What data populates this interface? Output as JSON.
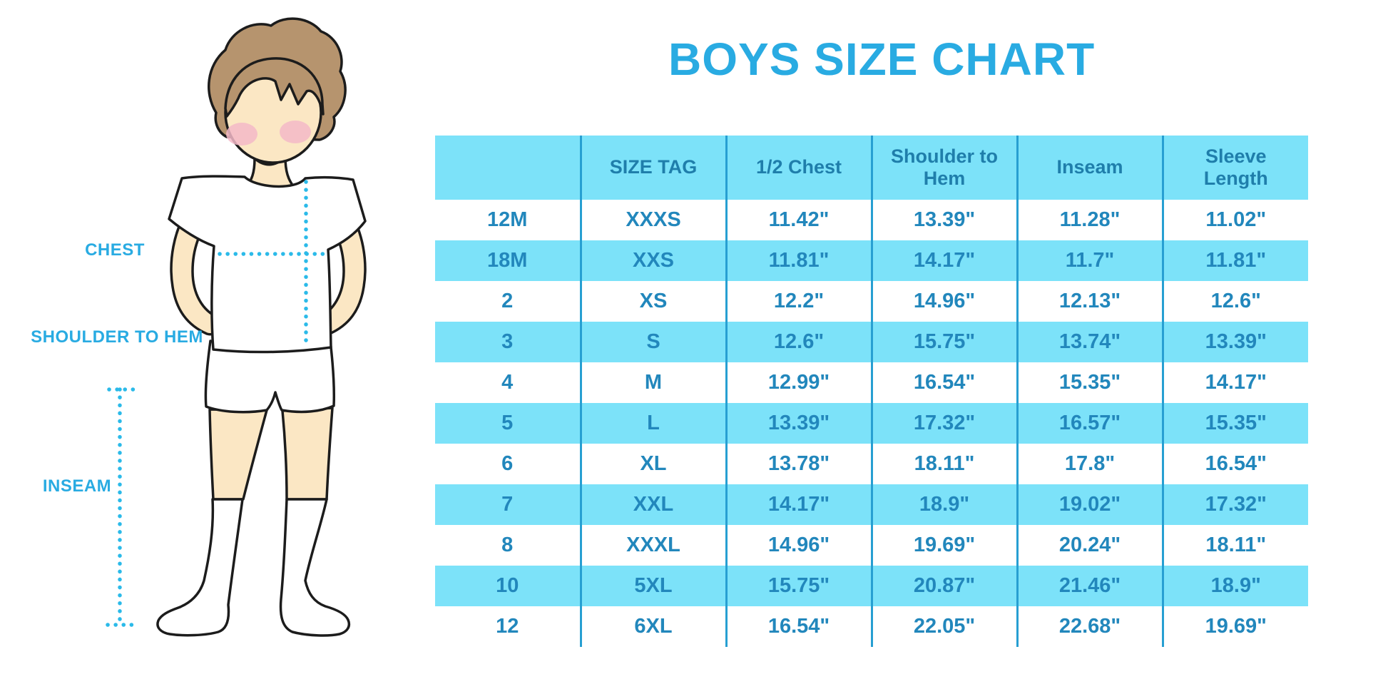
{
  "title": "BOYS SIZE CHART",
  "figure_labels": {
    "chest": "CHEST",
    "shoulder_to_hem": "SHOULDER TO HEM",
    "inseam": "INSEAM"
  },
  "colors": {
    "accent": "#29ABE2",
    "table_fill": "#7CE2F9",
    "table_line": "#279FD2",
    "table_text": "#2287BC",
    "header_text": "#1F7EAB",
    "dotted_line": "#2BBAE9",
    "skin": "#FBE7C4",
    "hair": "#B6946E",
    "cheek": "#F3B9C8"
  },
  "chart_data": {
    "type": "table",
    "title": "BOYS SIZE CHART",
    "columns": [
      "",
      "SIZE TAG",
      "1/2 Chest",
      "Shoulder to Hem",
      "Inseam",
      "Sleeve Length"
    ],
    "rows": [
      [
        "12M",
        "XXXS",
        "11.42\"",
        "13.39\"",
        "11.28\"",
        "11.02\""
      ],
      [
        "18M",
        "XXS",
        "11.81\"",
        "14.17\"",
        "11.7\"",
        "11.81\""
      ],
      [
        "2",
        "XS",
        "12.2\"",
        "14.96\"",
        "12.13\"",
        "12.6\""
      ],
      [
        "3",
        "S",
        "12.6\"",
        "15.75\"",
        "13.74\"",
        "13.39\""
      ],
      [
        "4",
        "M",
        "12.99\"",
        "16.54\"",
        "15.35\"",
        "14.17\""
      ],
      [
        "5",
        "L",
        "13.39\"",
        "17.32\"",
        "16.57\"",
        "15.35\""
      ],
      [
        "6",
        "XL",
        "13.78\"",
        "18.11\"",
        "17.8\"",
        "16.54\""
      ],
      [
        "7",
        "XXL",
        "14.17\"",
        "18.9\"",
        "19.02\"",
        "17.32\""
      ],
      [
        "8",
        "XXXL",
        "14.96\"",
        "19.69\"",
        "20.24\"",
        "18.11\""
      ],
      [
        "10",
        "5XL",
        "15.75\"",
        "20.87\"",
        "21.46\"",
        "18.9\""
      ],
      [
        "12",
        "6XL",
        "16.54\"",
        "22.05\"",
        "22.68\"",
        "19.69\""
      ]
    ]
  }
}
